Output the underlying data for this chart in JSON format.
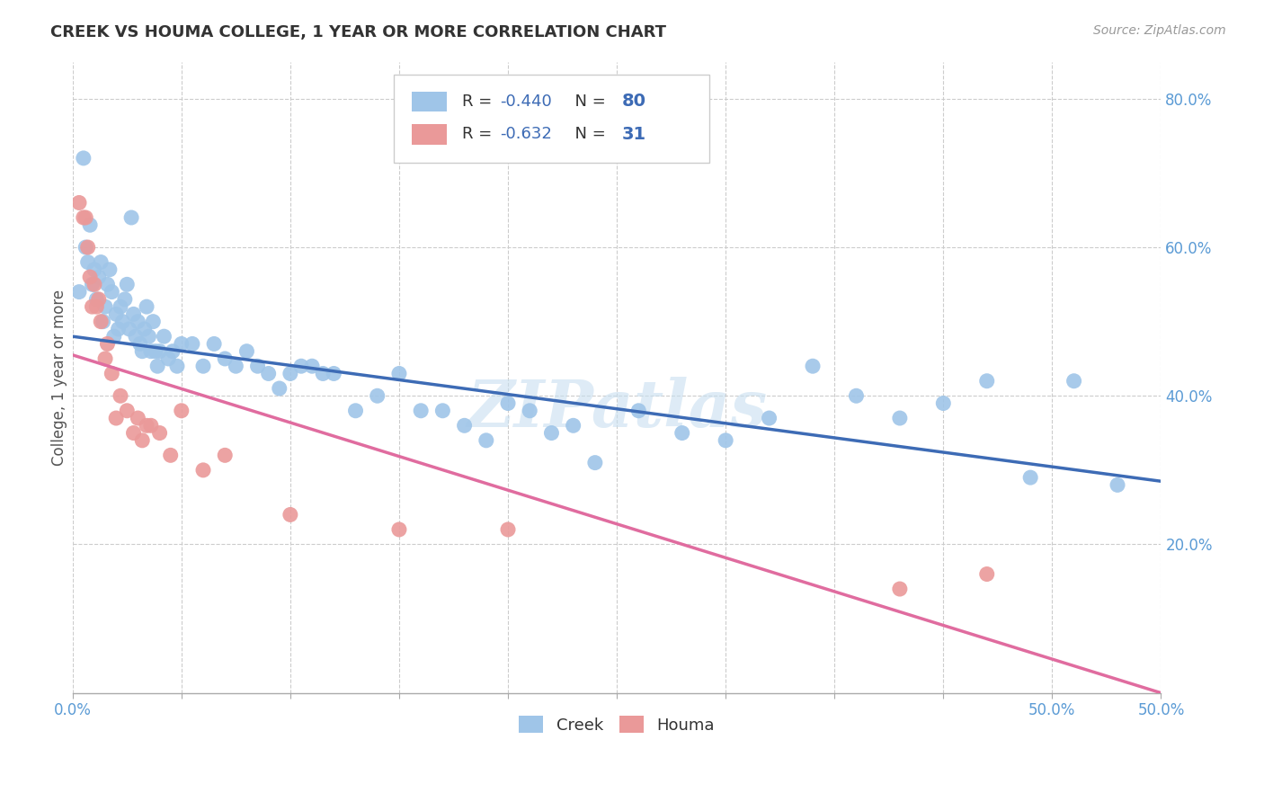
{
  "title": "CREEK VS HOUMA COLLEGE, 1 YEAR OR MORE CORRELATION CHART",
  "source": "Source: ZipAtlas.com",
  "ylabel": "College, 1 year or more",
  "xlim": [
    0.0,
    0.5
  ],
  "ylim": [
    0.0,
    0.85
  ],
  "xtick_minor_values": [
    0.0,
    0.05,
    0.1,
    0.15,
    0.2,
    0.25,
    0.3,
    0.35,
    0.4,
    0.45,
    0.5
  ],
  "xtick_end_labels": {
    "0.0": "0.0%",
    "0.5": "50.0%"
  },
  "ytick_labels_right": [
    "20.0%",
    "40.0%",
    "60.0%",
    "80.0%"
  ],
  "ytick_values_right": [
    0.2,
    0.4,
    0.6,
    0.8
  ],
  "creek_color": "#9fc5e8",
  "houma_color": "#ea9999",
  "creek_line_color": "#3d6bb5",
  "houma_line_color": "#e06c9f",
  "creek_R": "-0.440",
  "creek_N": "80",
  "houma_R": "-0.632",
  "houma_N": "31",
  "watermark": "ZIPatlas",
  "background_color": "#ffffff",
  "grid_color": "#cccccc",
  "creek_scatter_x": [
    0.003,
    0.005,
    0.006,
    0.007,
    0.008,
    0.009,
    0.01,
    0.011,
    0.012,
    0.013,
    0.014,
    0.015,
    0.016,
    0.017,
    0.018,
    0.019,
    0.02,
    0.021,
    0.022,
    0.023,
    0.024,
    0.025,
    0.026,
    0.027,
    0.028,
    0.029,
    0.03,
    0.031,
    0.032,
    0.033,
    0.034,
    0.035,
    0.036,
    0.037,
    0.038,
    0.039,
    0.04,
    0.042,
    0.044,
    0.046,
    0.048,
    0.05,
    0.055,
    0.06,
    0.065,
    0.07,
    0.075,
    0.08,
    0.085,
    0.09,
    0.095,
    0.1,
    0.105,
    0.11,
    0.115,
    0.12,
    0.13,
    0.14,
    0.15,
    0.16,
    0.17,
    0.18,
    0.19,
    0.2,
    0.21,
    0.22,
    0.23,
    0.24,
    0.26,
    0.28,
    0.3,
    0.32,
    0.34,
    0.36,
    0.38,
    0.4,
    0.42,
    0.44,
    0.46,
    0.48
  ],
  "creek_scatter_y": [
    0.54,
    0.72,
    0.6,
    0.58,
    0.63,
    0.55,
    0.57,
    0.53,
    0.56,
    0.58,
    0.5,
    0.52,
    0.55,
    0.57,
    0.54,
    0.48,
    0.51,
    0.49,
    0.52,
    0.5,
    0.53,
    0.55,
    0.49,
    0.64,
    0.51,
    0.48,
    0.5,
    0.47,
    0.46,
    0.49,
    0.52,
    0.48,
    0.46,
    0.5,
    0.46,
    0.44,
    0.46,
    0.48,
    0.45,
    0.46,
    0.44,
    0.47,
    0.47,
    0.44,
    0.47,
    0.45,
    0.44,
    0.46,
    0.44,
    0.43,
    0.41,
    0.43,
    0.44,
    0.44,
    0.43,
    0.43,
    0.38,
    0.4,
    0.43,
    0.38,
    0.38,
    0.36,
    0.34,
    0.39,
    0.38,
    0.35,
    0.36,
    0.31,
    0.38,
    0.35,
    0.34,
    0.37,
    0.44,
    0.4,
    0.37,
    0.39,
    0.42,
    0.29,
    0.42,
    0.28
  ],
  "houma_scatter_x": [
    0.003,
    0.005,
    0.006,
    0.007,
    0.008,
    0.009,
    0.01,
    0.011,
    0.012,
    0.013,
    0.015,
    0.016,
    0.018,
    0.02,
    0.022,
    0.025,
    0.028,
    0.03,
    0.032,
    0.034,
    0.036,
    0.04,
    0.045,
    0.05,
    0.06,
    0.07,
    0.1,
    0.15,
    0.2,
    0.38,
    0.42
  ],
  "houma_scatter_y": [
    0.66,
    0.64,
    0.64,
    0.6,
    0.56,
    0.52,
    0.55,
    0.52,
    0.53,
    0.5,
    0.45,
    0.47,
    0.43,
    0.37,
    0.4,
    0.38,
    0.35,
    0.37,
    0.34,
    0.36,
    0.36,
    0.35,
    0.32,
    0.38,
    0.3,
    0.32,
    0.24,
    0.22,
    0.22,
    0.14,
    0.16
  ],
  "creek_trend_x": [
    0.0,
    0.5
  ],
  "creek_trend_y": [
    0.48,
    0.285
  ],
  "houma_trend_x": [
    0.0,
    0.5
  ],
  "houma_trend_y": [
    0.455,
    0.0
  ]
}
